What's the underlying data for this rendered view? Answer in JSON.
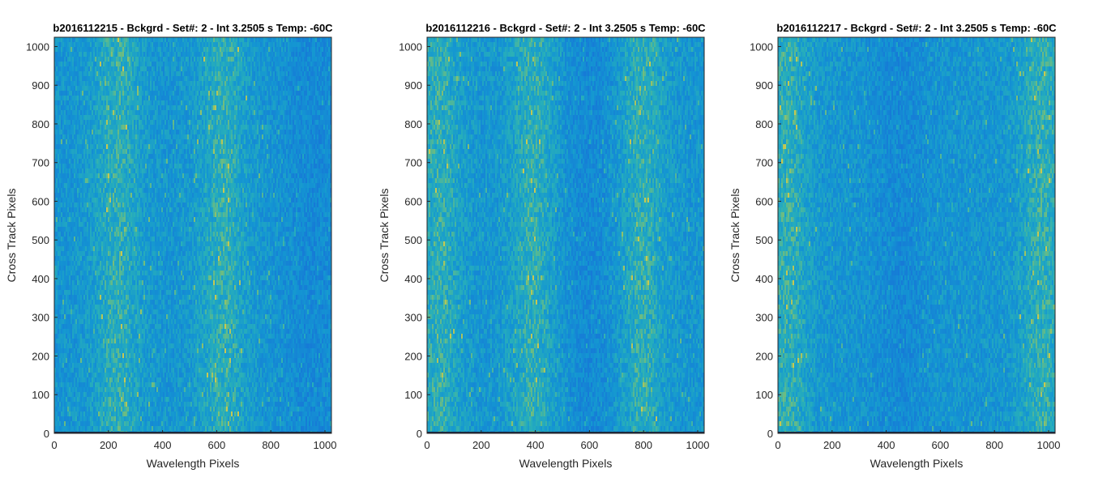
{
  "chart_data": [
    {
      "type": "heatmap",
      "title": "b2016112215 - Bckgrd - Set#: 2 - Int 3.2505 s Temp: -60C",
      "xlabel": "Wavelength Pixels",
      "ylabel": "Cross Track Pixels",
      "xlim": [
        0,
        1024
      ],
      "ylim": [
        0,
        1024
      ],
      "xticks": [
        0,
        200,
        400,
        600,
        800,
        1000
      ],
      "yticks": [
        0,
        100,
        200,
        300,
        400,
        500,
        600,
        700,
        800,
        900,
        1000
      ],
      "colormap": "parula",
      "warm_band_centers_x": [
        230,
        620
      ],
      "cool_band_centers_x": [
        950
      ]
    },
    {
      "type": "heatmap",
      "title": "b2016112216 - Bckgrd - Set#: 2 - Int 3.2505 s Temp: -60C",
      "xlabel": "Wavelength Pixels",
      "ylabel": "Cross Track Pixels",
      "xlim": [
        0,
        1024
      ],
      "ylim": [
        0,
        1024
      ],
      "xticks": [
        0,
        200,
        400,
        600,
        800,
        1000
      ],
      "yticks": [
        0,
        100,
        200,
        300,
        400,
        500,
        600,
        700,
        800,
        900,
        1000
      ],
      "colormap": "parula",
      "warm_band_centers_x": [
        40,
        390,
        790
      ],
      "cool_band_centers_x": [
        600
      ]
    },
    {
      "type": "heatmap",
      "title": "b2016112217 - Bckgrd - Set#: 2 - Int 3.2505 s Temp: -60C",
      "xlabel": "Wavelength Pixels",
      "ylabel": "Cross Track Pixels",
      "xlim": [
        0,
        1024
      ],
      "ylim": [
        0,
        1024
      ],
      "xticks": [
        0,
        200,
        400,
        600,
        800,
        1000
      ],
      "yticks": [
        0,
        100,
        200,
        300,
        400,
        500,
        600,
        700,
        800,
        900,
        1000
      ],
      "colormap": "parula",
      "warm_band_centers_x": [
        30,
        970
      ],
      "cool_band_centers_x": [
        450
      ]
    }
  ]
}
